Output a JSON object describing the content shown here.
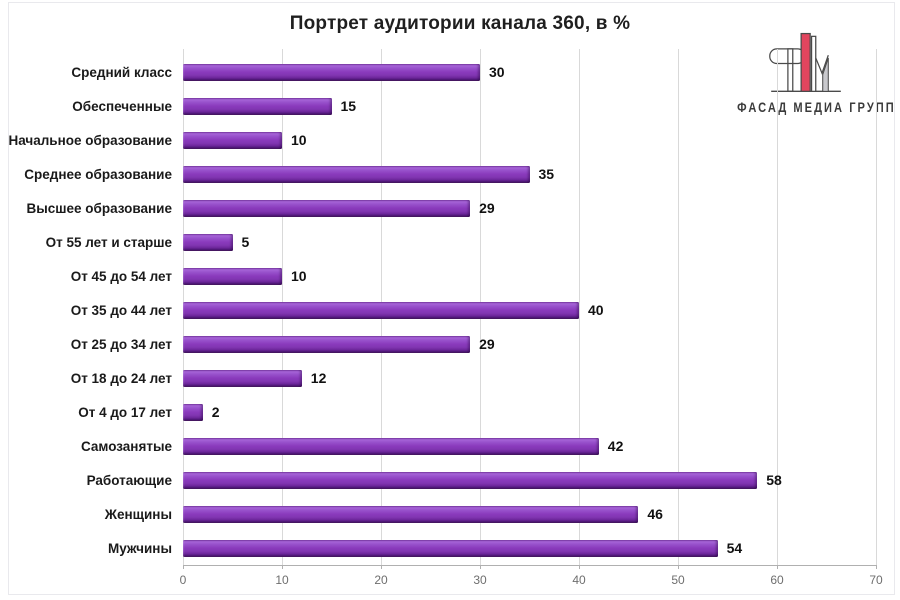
{
  "title": "Портрет аудитории канала 360, в %",
  "logo": {
    "text": "ФАСАД МЕДИА ГРУПП",
    "red": "#e2455e",
    "gray": "#c9c9cd",
    "outline": "#4a4a4a"
  },
  "chart_data": {
    "type": "bar",
    "orientation": "horizontal",
    "title": "Портрет аудитории канала 360, в %",
    "categories": [
      "Средний класс",
      "Обеспеченные",
      "Начальное образование",
      "Среднее образование",
      "Высшее образование",
      "От 55 лет и старше",
      "От 45 до 54 лет",
      "От 35 до 44 лет",
      "От 25 до 34 лет",
      "От 18 до 24 лет",
      "От 4 до 17 лет",
      "Самозанятые",
      "Работающие",
      "Женщины",
      "Мужчины"
    ],
    "values": [
      30,
      15,
      10,
      35,
      29,
      5,
      10,
      40,
      29,
      12,
      2,
      42,
      58,
      46,
      54
    ],
    "xlabel": "",
    "ylabel": "",
    "xlim": [
      0,
      70
    ],
    "xticks": [
      0,
      10,
      20,
      30,
      40,
      50,
      60,
      70
    ],
    "grid": true,
    "legend": false,
    "data_labels": true,
    "bar_color": "#8a3abc",
    "bar_highlight": "#aa68da",
    "bar_shadow": "#45125f",
    "gridline_color": "#d9d9d9",
    "axis_color": "#b0b0b0",
    "tick_label_color": "#6e6e6e"
  }
}
